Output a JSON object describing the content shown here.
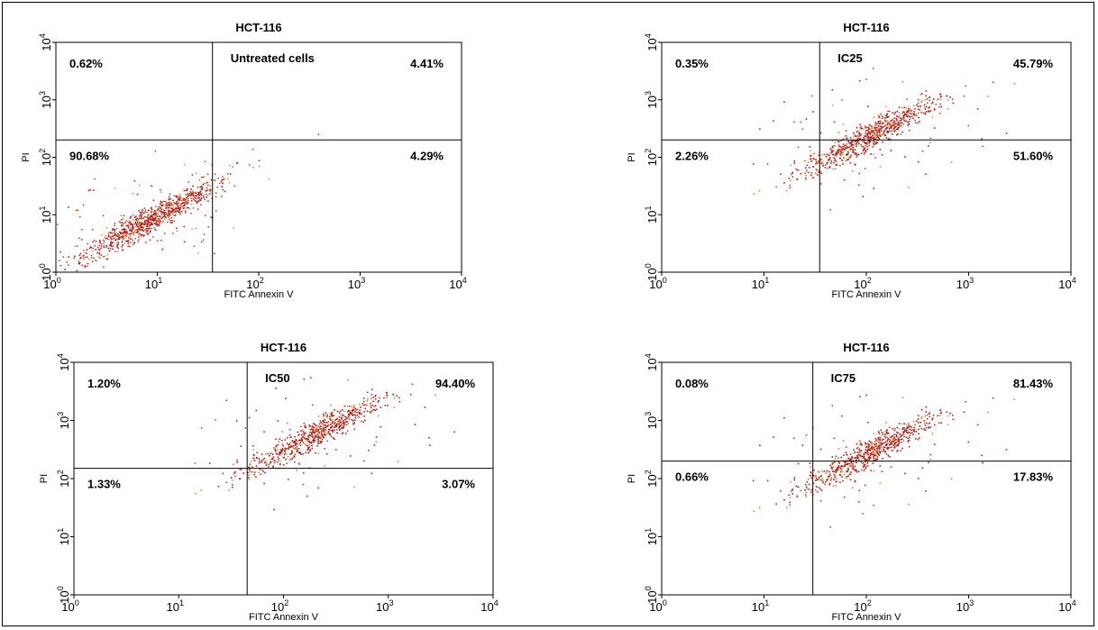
{
  "chart_data": [
    {
      "type": "scatter",
      "title": "HCT-116",
      "annotation": "Untreated cells",
      "xlabel": "FITC Annexin V",
      "ylabel": "PI",
      "xscale": "log",
      "yscale": "log",
      "xlim": [
        1,
        10000
      ],
      "ylim": [
        1,
        10000
      ],
      "x_ticks": [
        "10",
        "10",
        "10",
        "10",
        "10"
      ],
      "x_tick_exponents": [
        "0",
        "1",
        "2",
        "3",
        "4"
      ],
      "y_ticks": [
        "10",
        "10",
        "10",
        "10",
        "10"
      ],
      "y_tick_exponents": [
        "0",
        "1",
        "2",
        "3",
        "4"
      ],
      "quadrant_gate": {
        "x": 35,
        "y": 200
      },
      "quadrants": {
        "upper_left": "0.62%",
        "upper_right": "4.41%",
        "lower_left": "90.68%",
        "lower_right": "4.29%"
      },
      "population": {
        "center": [
          9,
          9
        ],
        "extent": [
          1.5,
          1500
        ],
        "color": "#b01818"
      }
    },
    {
      "type": "scatter",
      "title": "HCT-116",
      "annotation": "IC25",
      "xlabel": "FITC Annexin V",
      "ylabel": "PI",
      "xscale": "log",
      "yscale": "log",
      "xlim": [
        1,
        10000
      ],
      "ylim": [
        1,
        10000
      ],
      "x_ticks": [
        "10",
        "10",
        "10",
        "10",
        "10"
      ],
      "x_tick_exponents": [
        "0",
        "1",
        "2",
        "3",
        "4"
      ],
      "y_ticks": [
        "10",
        "10",
        "10",
        "10",
        "10"
      ],
      "y_tick_exponents": [
        "0",
        "1",
        "2",
        "3",
        "4"
      ],
      "quadrant_gate": {
        "x": 35,
        "y": 200
      },
      "quadrants": {
        "upper_left": "0.35%",
        "upper_right": "45.79%",
        "lower_left": "2.26%",
        "lower_right": "51.60%"
      },
      "population": {
        "center": [
          110,
          250
        ],
        "extent": [
          30,
          1500
        ],
        "color": "#b01818"
      }
    },
    {
      "type": "scatter",
      "title": "HCT-116",
      "annotation": "IC50",
      "xlabel": "FITC Annexin V",
      "ylabel": "PI",
      "xscale": "log",
      "yscale": "log",
      "xlim": [
        1,
        10000
      ],
      "ylim": [
        1,
        10000
      ],
      "x_ticks": [
        "10",
        "10",
        "10",
        "10",
        "10"
      ],
      "x_tick_exponents": [
        "0",
        "1",
        "2",
        "3",
        "4"
      ],
      "y_ticks": [
        "10",
        "10",
        "10",
        "10",
        "10"
      ],
      "y_tick_exponents": [
        "0",
        "1",
        "2",
        "3",
        "4"
      ],
      "quadrant_gate": {
        "x": 45,
        "y": 150
      },
      "quadrants": {
        "upper_left": "1.20%",
        "upper_right": "94.40%",
        "lower_left": "1.33%",
        "lower_right": "3.07%"
      },
      "population": {
        "center": [
          200,
          600
        ],
        "extent": [
          40,
          2500
        ],
        "color": "#b01818"
      }
    },
    {
      "type": "scatter",
      "title": "HCT-116",
      "annotation": "IC75",
      "xlabel": "FITC Annexin V",
      "ylabel": "PI",
      "xscale": "log",
      "yscale": "log",
      "xlim": [
        1,
        10000
      ],
      "ylim": [
        1,
        10000
      ],
      "x_ticks": [
        "10",
        "10",
        "10",
        "10",
        "10"
      ],
      "x_tick_exponents": [
        "0",
        "1",
        "2",
        "3",
        "4"
      ],
      "y_ticks": [
        "10",
        "10",
        "10",
        "10",
        "10"
      ],
      "y_tick_exponents": [
        "0",
        "1",
        "2",
        "3",
        "4"
      ],
      "quadrant_gate": {
        "x": 30,
        "y": 200
      },
      "quadrants": {
        "upper_left": "0.08%",
        "upper_right": "81.43%",
        "lower_left": "0.66%",
        "lower_right": "17.83%"
      },
      "population": {
        "center": [
          110,
          300
        ],
        "extent": [
          25,
          1500
        ],
        "color": "#b01818"
      }
    }
  ]
}
